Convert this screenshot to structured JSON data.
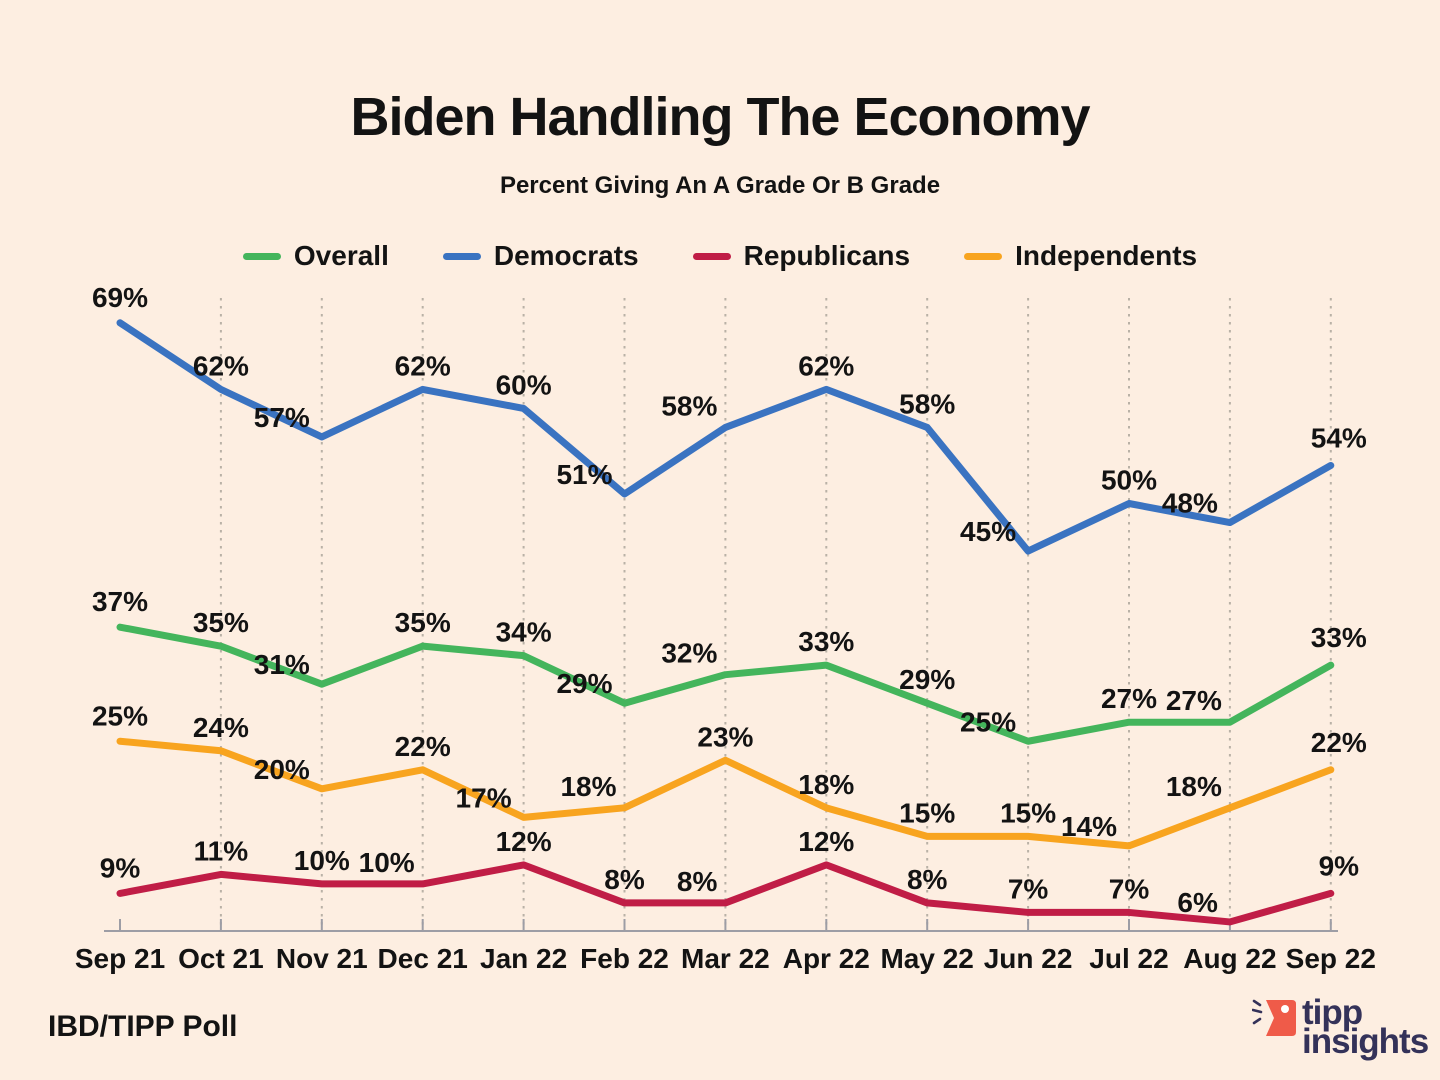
{
  "page": {
    "background": "#fdeee1"
  },
  "header": {
    "title": "Biden Handling The Economy",
    "subtitle": "Percent Giving An A Grade Or B Grade"
  },
  "chart_data": {
    "type": "line",
    "title": "Biden Handling The Economy",
    "subtitle": "Percent Giving An A Grade Or B Grade",
    "categories": [
      "Sep 21",
      "Oct 21",
      "Nov 21",
      "Dec 21",
      "Jan 22",
      "Feb 22",
      "Mar 22",
      "Apr 22",
      "May 22",
      "Jun 22",
      "Jul 22",
      "Aug 22",
      "Sep 22"
    ],
    "series": [
      {
        "name": "Overall",
        "color": "#44b55c",
        "values": [
          37,
          35,
          31,
          35,
          34,
          29,
          32,
          33,
          29,
          25,
          27,
          27,
          33
        ]
      },
      {
        "name": "Democrats",
        "color": "#3a73c1",
        "values": [
          69,
          62,
          57,
          62,
          60,
          51,
          58,
          62,
          58,
          45,
          50,
          48,
          54
        ]
      },
      {
        "name": "Republicans",
        "color": "#c01d46",
        "values": [
          9,
          11,
          10,
          10,
          12,
          8,
          8,
          12,
          8,
          7,
          7,
          6,
          9
        ]
      },
      {
        "name": "Independents",
        "color": "#f8a41f",
        "values": [
          25,
          24,
          20,
          22,
          17,
          18,
          23,
          18,
          15,
          15,
          14,
          18,
          22
        ]
      }
    ],
    "value_suffix": "%",
    "data_labels": true,
    "ylim": [
      5,
      74
    ],
    "grid": "vertical-dotted",
    "grid_color": "#b9b1a6",
    "axis_color": "#9d9da5",
    "label_color": "#131313",
    "legend_position": "top"
  },
  "footer": {
    "source": "IBD/TIPP Poll",
    "logo": {
      "word1": "tipp",
      "word2": "insights",
      "icon": "tipp-flag-icon",
      "icon_color": "#ef5b49",
      "text_color": "#343259"
    }
  }
}
